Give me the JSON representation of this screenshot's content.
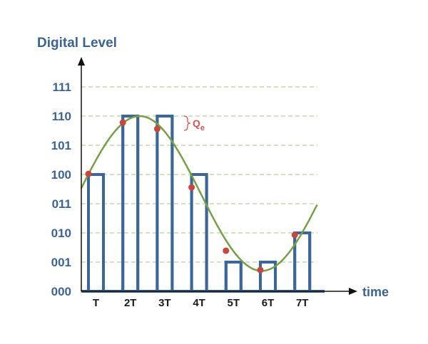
{
  "chart_data": {
    "type": "line",
    "ylabel": "Digital Level",
    "xlabel": "time",
    "y_tick_labels": [
      "000",
      "001",
      "010",
      "011",
      "100",
      "101",
      "110",
      "111"
    ],
    "x_tick_labels": [
      "T",
      "2T",
      "3T",
      "4T",
      "5T",
      "6T",
      "7T"
    ],
    "grid": "horizontal dashed",
    "annotation": {
      "text": "Q",
      "subscript": "e"
    },
    "quantized_levels": [
      4,
      6,
      6,
      4,
      1,
      1,
      2
    ],
    "sample_values": [
      4.02,
      5.78,
      5.56,
      3.56,
      1.39,
      0.73,
      1.93
    ],
    "analog_signal": {
      "shape": "sinusoid",
      "offset": 3.35,
      "amplitude": 2.65,
      "peak_at_T": 2.49,
      "period_T": 7.1,
      "t_range": [
        0.79,
        7.66
      ]
    },
    "colors": {
      "pulses": "#3a6699",
      "signal": "#76a045",
      "samples": "#c9463f",
      "grid": "#b5d49a",
      "labels": "#3b6494",
      "annotation": "#d9534f"
    }
  }
}
